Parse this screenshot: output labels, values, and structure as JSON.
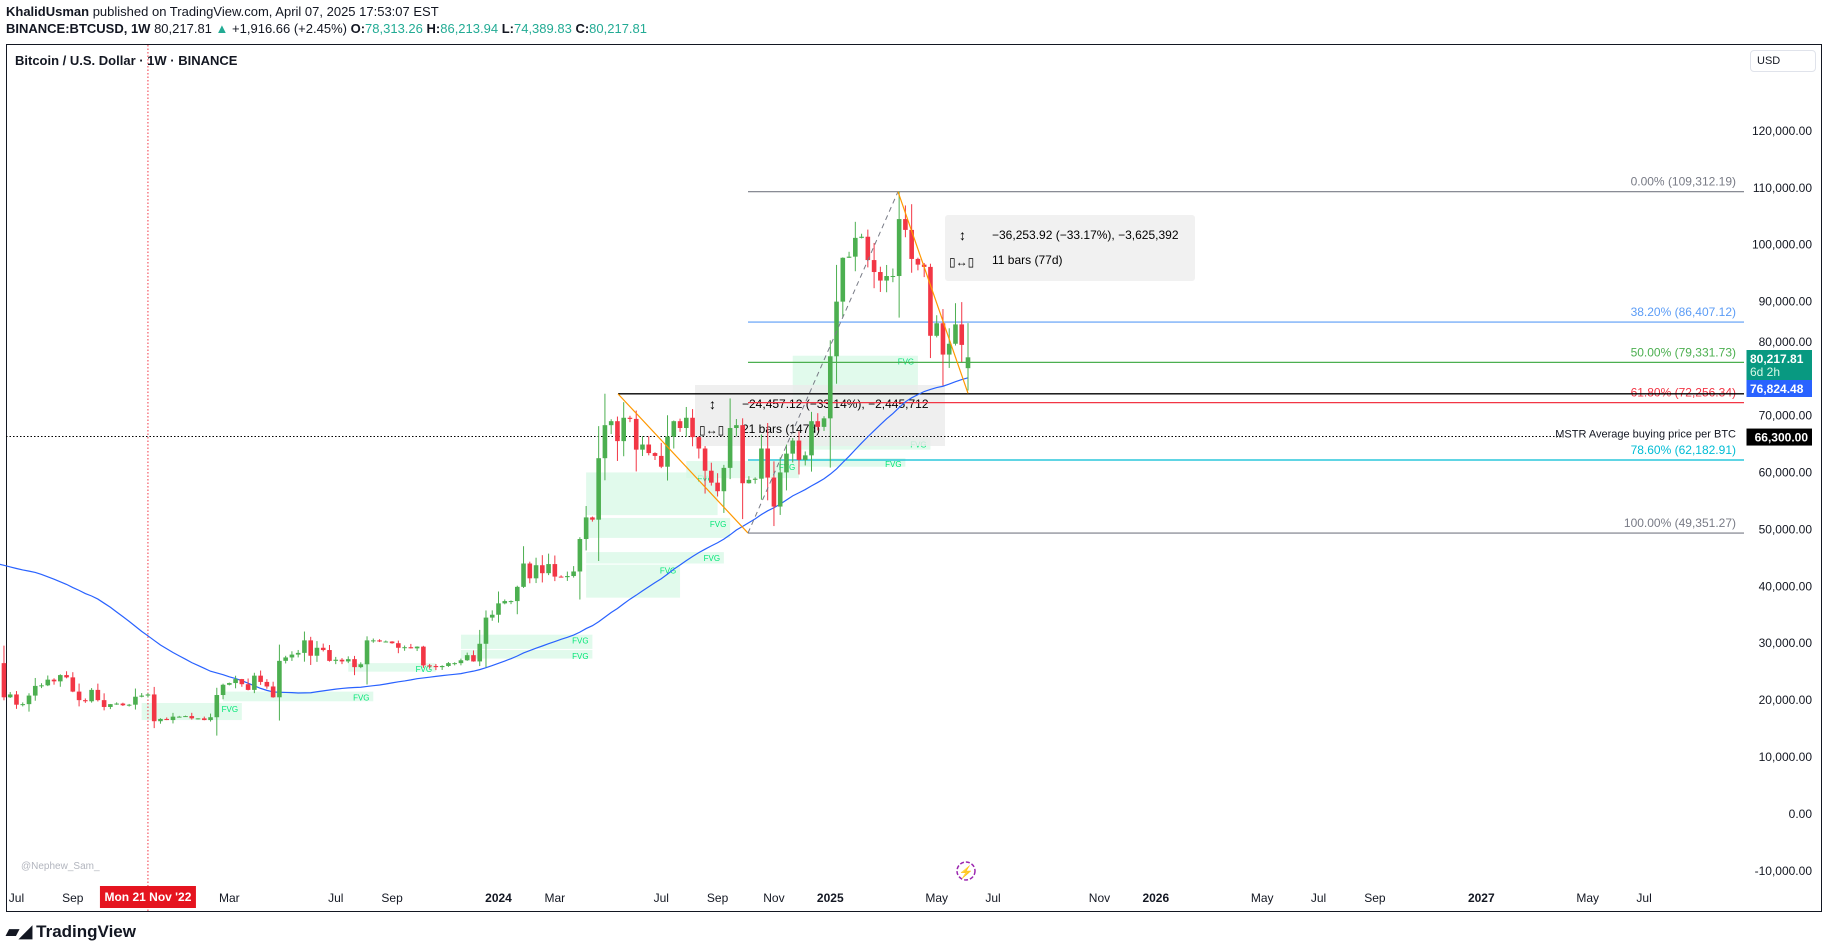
{
  "header": {
    "author": "KhalidUsman",
    "published": "published on TradingView.com, April 07, 2025 17:53:07 EST",
    "symbol": "BINANCE:BTCUSD, 1W",
    "last": "80,217.81",
    "change": "+1,916.66 (+2.45%)",
    "o_label": "O:",
    "o": "78,313.26",
    "h_label": "H:",
    "h": "86,213.94",
    "l_label": "L:",
    "l": "74,389.83",
    "c_label": "C:",
    "c": "80,217.81"
  },
  "currency": "USD",
  "watermark": "@Nephew_Sam_",
  "brand": "TradingView",
  "colors": {
    "up": "#4caf50",
    "down": "#f23645",
    "ma": "#2962ff",
    "fvg": "#d7f8e6"
  },
  "chart_data": {
    "type": "candlestick",
    "title": "Bitcoin / U.S. Dollar · 1W · BINANCE",
    "ylim": [
      -10000,
      125000
    ],
    "y_ticks": [
      "120,000.00",
      "110,000.00",
      "100,000.00",
      "90,000.00",
      "80,000.00",
      "70,000.00",
      "60,000.00",
      "50,000.00",
      "40,000.00",
      "30,000.00",
      "20,000.00",
      "10,000.00",
      "0.00",
      "-10,000.00"
    ],
    "y_tick_values": [
      120000,
      110000,
      100000,
      90000,
      80000,
      70000,
      60000,
      50000,
      40000,
      30000,
      20000,
      10000,
      0,
      -10000
    ],
    "x_ticks": [
      {
        "label": "Jul",
        "w": 9
      },
      {
        "label": "Sep",
        "w": 18
      },
      {
        "label": "Mar",
        "w": 43
      },
      {
        "label": "Jul",
        "w": 60
      },
      {
        "label": "Sep",
        "w": 69
      },
      {
        "label": "2024",
        "w": 86
      },
      {
        "label": "Mar",
        "w": 95
      },
      {
        "label": "Jul",
        "w": 112
      },
      {
        "label": "Sep",
        "w": 121
      },
      {
        "label": "Nov",
        "w": 130
      },
      {
        "label": "2025",
        "w": 139
      },
      {
        "label": "May",
        "w": 156
      },
      {
        "label": "Jul",
        "w": 165
      },
      {
        "label": "Nov",
        "w": 182
      },
      {
        "label": "2026",
        "w": 191
      },
      {
        "label": "May",
        "w": 208
      },
      {
        "label": "Jul",
        "w": 217
      },
      {
        "label": "Sep",
        "w": 226
      },
      {
        "label": "2027",
        "w": 243
      },
      {
        "label": "May",
        "w": 260
      },
      {
        "label": "Jul",
        "w": 269
      }
    ],
    "crosshair_label": "Mon 21 Nov '22",
    "crosshair_week": 30,
    "closes_k": [
      34,
      30,
      29,
      29.5,
      31.5,
      29.9,
      26.5,
      20.5,
      21,
      19.2,
      19.3,
      20.8,
      22.5,
      22.6,
      23.6,
      23.3,
      24.4,
      24.0,
      21.5,
      20.0,
      19.8,
      21.8,
      20.0,
      18.8,
      19.3,
      19.4,
      19.1,
      19.2,
      20.6,
      20.8,
      21.0,
      16.3,
      16.7,
      16.5,
      17.1,
      17.1,
      17.2,
      16.8,
      16.8,
      16.5,
      17.0,
      20.9,
      22.7,
      23.0,
      23.7,
      22.8,
      21.8,
      24.3,
      23.2,
      22.4,
      20.5,
      26.9,
      27.5,
      28.0,
      28.3,
      30.5,
      27.8,
      29.2,
      28.8,
      26.9,
      27.1,
      26.8,
      27.2,
      25.8,
      26.3,
      30.5,
      30.5,
      30.3,
      30.3,
      30.0,
      29.2,
      29.3,
      29.1,
      29.4,
      26.1,
      26.0,
      25.8,
      26.0,
      26.5,
      26.5,
      27.0,
      27.9,
      26.8,
      29.9,
      34.5,
      35.0,
      37.0,
      37.4,
      37.4,
      39.9,
      44.0,
      41.4,
      43.7,
      42.3,
      43.9,
      41.7,
      41.6,
      41.8,
      42.6,
      48.3,
      52.1,
      51.7,
      62.5,
      68.3,
      69.0,
      65.5,
      69.6,
      69.4,
      64.0,
      64.9,
      63.4,
      62.9,
      61.0,
      66.3,
      69.0,
      67.8,
      69.6,
      66.2,
      64.2,
      60.3,
      58.2,
      56.7,
      60.8,
      67.8,
      68.3,
      58.1,
      58.7,
      58.9,
      64.2,
      59.1,
      54.0,
      60.0,
      63.3,
      65.6,
      62.2,
      63.0,
      69.0,
      68.0,
      69.5,
      80.4,
      90.0,
      97.7,
      97.9,
      101.2,
      101.4,
      97.3,
      95.2,
      93.7,
      94.5,
      94.5,
      104.5,
      102.6,
      97.5,
      96.5,
      96.1,
      84.0,
      86.2,
      80.7,
      82.6,
      86.0,
      82.4,
      78.3
    ],
    "last_candle": {
      "open": 78313.26,
      "high": 86213.94,
      "low": 74389.83,
      "close": 80217.81
    },
    "ma_prehistory_k": [
      58,
      50,
      37,
      36,
      39,
      35,
      35,
      34,
      35,
      33,
      32,
      31,
      34,
      40,
      45,
      44,
      47,
      47,
      49,
      45,
      48,
      43,
      47,
      55,
      55,
      61,
      60,
      61,
      64,
      65,
      60,
      57,
      57,
      49,
      50,
      47,
      46,
      47,
      42,
      41,
      43,
      36,
      38,
      42,
      39,
      41,
      44,
      47,
      46,
      40
    ],
    "ma_period": 50,
    "fib_levels": [
      {
        "label": "0.00% (109,312.19)",
        "value": 109312.19,
        "color": "#787b86"
      },
      {
        "label": "38.20% (86,407.12)",
        "value": 86407.12,
        "color": "#5b9cf6"
      },
      {
        "label": "50.00% (79,331.73)",
        "value": 79331.73,
        "color": "#4caf50"
      },
      {
        "label": "61.80% (72,256.34)",
        "value": 72256.34,
        "color": "#f23645"
      },
      {
        "label": "78.60% (62,182.91)",
        "value": 62182.91,
        "color": "#00bcd4"
      },
      {
        "label": "100.00% (49,351.27)",
        "value": 49351.27,
        "color": "#787b86"
      }
    ],
    "ath_line": 73800,
    "mstr": {
      "label": "MSTR Average buying price per BTC",
      "value": 66300,
      "tag": "66,300.00"
    },
    "price_tags": [
      {
        "text": "80,217.81",
        "sub": "6d 2h",
        "value": 80217.81,
        "color": "#089981"
      },
      {
        "text": "76,824.48",
        "value": 76824.48,
        "color": "#2962ff"
      }
    ],
    "measures": [
      {
        "line1": "−36,253.92 (−33.17%), −3,625,392",
        "line2": "11 bars (77d)"
      },
      {
        "line1": "−24,457.12 (−33.14%), −2,445,712",
        "line2": "21 bars (147d)"
      }
    ],
    "fvg_label": "FVG",
    "fvgs": [
      {
        "w": [
          29,
          45
        ],
        "p": [
          16500,
          19500
        ]
      },
      {
        "w": [
          42,
          66
        ],
        "p": [
          19800,
          21500
        ]
      },
      {
        "w": [
          62,
          76
        ],
        "p": [
          25000,
          26500
        ]
      },
      {
        "w": [
          80,
          101
        ],
        "p": [
          29000,
          31500
        ]
      },
      {
        "w": [
          80,
          101
        ],
        "p": [
          27300,
          28800
        ]
      },
      {
        "w": [
          100,
          115
        ],
        "p": [
          38000,
          43800
        ]
      },
      {
        "w": [
          100,
          123
        ],
        "p": [
          48500,
          52000
        ]
      },
      {
        "w": [
          100,
          121
        ],
        "p": [
          52500,
          60000
        ]
      },
      {
        "w": [
          100,
          122
        ],
        "p": [
          44000,
          46000
        ]
      },
      {
        "w": [
          116,
          134
        ],
        "p": [
          59000,
          62000
        ]
      },
      {
        "w": [
          133,
          153
        ],
        "p": [
          72000,
          80500
        ]
      },
      {
        "w": [
          134,
          155
        ],
        "p": [
          64000,
          66000
        ]
      },
      {
        "w": [
          134,
          151
        ],
        "p": [
          61000,
          62500
        ]
      }
    ]
  }
}
